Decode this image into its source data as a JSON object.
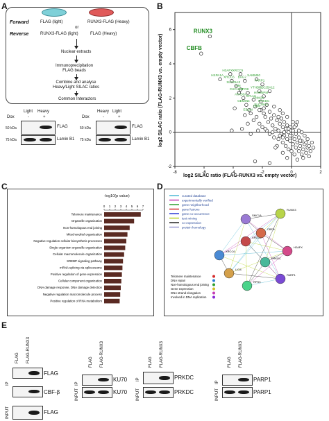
{
  "panel_letters": {
    "A": "A",
    "B": "B",
    "C": "C",
    "D": "D",
    "E": "E"
  },
  "panelA": {
    "forward_label": "Forward",
    "reverse_label": "Reverse",
    "forward_left": "FLAG (light)",
    "forward_right": "RUNX3-FLAG (Heavy)",
    "or_text": "or",
    "reverse_left": "RUNX3-FLAG (light)",
    "reverse_right": "FLAG (Heavy)",
    "steps": [
      "Nuclear extracts",
      "Immunoprecipitation\nFLAG beads",
      "Combine and analyse\nHeavy/Light SILAC ratios",
      "Common Interactors"
    ],
    "blot1_cols": [
      "Light",
      "Heavy"
    ],
    "blot2_cols": [
      "Heavy",
      "Light"
    ],
    "dox_label": "Dox",
    "dox_signs": [
      "-",
      "+"
    ],
    "mw_50": "50 kDa",
    "mw_75": "75 kDa",
    "flag_label": "FLAG",
    "lamin_label": "Lamin B1"
  },
  "chart_data": {
    "type": "scatter",
    "xlabel": "log2 SILAC ratio (FLAG-RUNX3 vs. empty vector)",
    "ylabel": "log2 SILAC ratio (FLAG-RUNX3 vs. empty vector)",
    "xlim": [
      -8,
      2
    ],
    "ylim": [
      -2,
      7
    ],
    "xticks": [
      -8,
      -6,
      -4,
      -2,
      0,
      2
    ],
    "yticks": [
      -2,
      0,
      2,
      4,
      6
    ],
    "highlighted": [
      {
        "name": "RUNX3",
        "x": -5.6,
        "y": 5.6
      },
      {
        "name": "CBFB",
        "x": -6.2,
        "y": 4.6
      },
      {
        "name": "H2AFX",
        "x": -4.2,
        "y": 3.4
      },
      {
        "name": "HSPA1A",
        "x": -4.9,
        "y": 3.1
      },
      {
        "name": "XRCC5",
        "x": -3.5,
        "y": 3.4
      },
      {
        "name": "XRCC6",
        "x": -4.1,
        "y": 3.0
      },
      {
        "name": "SAMM50",
        "x": -2.4,
        "y": 3.1
      },
      {
        "name": "BAG2",
        "x": -3.2,
        "y": 3.0
      },
      {
        "name": "SLC25A3",
        "x": -3.8,
        "y": 2.7
      },
      {
        "name": "PARP1",
        "x": -2.0,
        "y": 2.8
      },
      {
        "name": "VIM",
        "x": -3.5,
        "y": 2.5
      },
      {
        "name": "SLC25A12",
        "x": -1.5,
        "y": 2.4
      },
      {
        "name": "CHCHD3",
        "x": -3.6,
        "y": 2.3
      },
      {
        "name": "IPO8",
        "x": -3.0,
        "y": 2.3
      },
      {
        "name": "YTHDF2",
        "x": -2.2,
        "y": 2.4
      },
      {
        "name": "ATAD3A",
        "x": -3.3,
        "y": 2.0
      },
      {
        "name": "RPL13",
        "x": -2.6,
        "y": 1.9
      },
      {
        "name": "HNRNPM",
        "x": -1.9,
        "y": 2.1
      },
      {
        "name": "TRIM28",
        "x": -2.1,
        "y": 1.8
      },
      {
        "name": "GEMIN4",
        "x": -3.1,
        "y": 1.6
      },
      {
        "name": "PRKDC",
        "x": -1.7,
        "y": 1.6
      },
      {
        "name": "SLC25A5",
        "x": -1.9,
        "y": 1.4
      },
      {
        "name": "DNM",
        "x": -2.2,
        "y": 1.3
      },
      {
        "name": "EBLIN",
        "x": -2.8,
        "y": 1.1
      }
    ],
    "others": [
      [
        -2.1,
        1.3
      ],
      [
        -1.9,
        1.1
      ],
      [
        -1.8,
        0.9
      ],
      [
        -1.5,
        1.2
      ],
      [
        -1.4,
        0.8
      ],
      [
        -1.2,
        1.0
      ],
      [
        -1.0,
        0.7
      ],
      [
        -0.9,
        0.9
      ],
      [
        -0.8,
        0.5
      ],
      [
        -0.7,
        0.8
      ],
      [
        -0.6,
        0.3
      ],
      [
        -0.5,
        0.6
      ],
      [
        -0.4,
        0.2
      ],
      [
        -0.3,
        0.4
      ],
      [
        -0.2,
        0.0
      ],
      [
        -0.1,
        0.3
      ],
      [
        0.0,
        -0.2
      ],
      [
        0.1,
        0.1
      ],
      [
        0.2,
        -0.4
      ],
      [
        0.3,
        -0.1
      ],
      [
        0.4,
        -0.6
      ],
      [
        0.5,
        -0.3
      ],
      [
        0.6,
        -0.8
      ],
      [
        0.7,
        -0.5
      ],
      [
        0.8,
        -1.0
      ],
      [
        0.9,
        -0.7
      ],
      [
        1.0,
        -1.2
      ],
      [
        1.1,
        -0.9
      ],
      [
        1.2,
        -1.4
      ],
      [
        1.3,
        -1.1
      ],
      [
        -1.6,
        0.6
      ],
      [
        -1.3,
        0.4
      ],
      [
        -1.1,
        0.2
      ],
      [
        -0.9,
        0.1
      ],
      [
        -0.7,
        -0.1
      ],
      [
        -0.5,
        -0.2
      ],
      [
        -0.3,
        -0.4
      ],
      [
        -0.1,
        -0.5
      ],
      [
        0.1,
        -0.7
      ],
      [
        0.3,
        -0.9
      ],
      [
        0.5,
        -1.1
      ],
      [
        0.7,
        -1.3
      ],
      [
        -2.4,
        0.9
      ],
      [
        -2.6,
        0.7
      ],
      [
        -2.2,
        0.5
      ],
      [
        -2.0,
        0.3
      ],
      [
        -1.7,
        0.1
      ],
      [
        -1.5,
        -0.1
      ],
      [
        -1.2,
        -0.3
      ],
      [
        -0.9,
        -0.4
      ],
      [
        -0.6,
        -0.6
      ],
      [
        -0.4,
        -0.8
      ],
      [
        -0.2,
        -1.0
      ],
      [
        0.0,
        -1.1
      ],
      [
        0.2,
        -1.3
      ],
      [
        -3.0,
        0.5
      ],
      [
        -3.4,
        0.2
      ],
      [
        -4.1,
        0.1
      ],
      [
        -2.8,
        -0.1
      ],
      [
        -1.0,
        -0.8
      ],
      [
        -0.6,
        -1.2
      ],
      [
        -0.3,
        -1.5
      ],
      [
        0.4,
        -1.6
      ],
      [
        0.8,
        -1.5
      ],
      [
        -3.9,
        1.4
      ],
      [
        -3.2,
        1.0
      ],
      [
        -2.9,
        1.3
      ],
      [
        -2.5,
        1.5
      ],
      [
        -1.2,
        1.5
      ],
      [
        -0.8,
        1.3
      ],
      [
        -0.6,
        1.1
      ],
      [
        -0.3,
        0.9
      ],
      [
        0.1,
        0.6
      ],
      [
        0.3,
        0.4
      ],
      [
        0.5,
        0.1
      ],
      [
        0.7,
        0.0
      ],
      [
        0.9,
        -0.2
      ],
      [
        1.1,
        -0.4
      ],
      [
        1.4,
        -0.6
      ],
      [
        1.5,
        -0.9
      ],
      [
        -1.1,
        -0.9
      ],
      [
        -1.5,
        -1.8
      ],
      [
        -2.5,
        -1.7
      ],
      [
        -0.5,
        0.0
      ],
      [
        -0.2,
        0.2
      ],
      [
        0.2,
        0.3
      ],
      [
        0.4,
        0.6
      ],
      [
        -0.6,
        -0.3
      ],
      [
        -0.8,
        -0.2
      ],
      [
        -1.3,
        0.0
      ],
      [
        -1.8,
        0.2
      ],
      [
        -2.3,
        0.1
      ],
      [
        -0.1,
        -0.2
      ],
      [
        0.6,
        -0.5
      ],
      [
        1.0,
        -0.6
      ],
      [
        1.2,
        -0.8
      ]
    ],
    "runx3_color": "#1e8a1e",
    "gene_color": "#2d9e2d",
    "point_color": "#222222"
  },
  "panelC": {
    "title": "-log10(p value)",
    "ticks": [
      "0",
      "1",
      "2",
      "3",
      "4",
      "5",
      "6",
      "7"
    ],
    "categories": [
      "Telomere maintenance",
      "Organelle organization",
      "Non-homologous end joining",
      "Mitochondrial organization",
      "Negative regulation cellular biosynthetic processes",
      "Single organism organelle organization",
      "Cellular macromolecule organization",
      "SREBP signaling pathway",
      "mRNA splicing via spliceosome",
      "Positive regulation of gene expression",
      "Cellular component organization",
      "DNA damage response, DNA damage detection",
      "Negative regulation macromolecule process",
      "Positive regulation of RNA metabolism"
    ],
    "values": [
      6.6,
      5.4,
      4.6,
      4.2,
      4.0,
      3.8,
      3.6,
      3.4,
      3.3,
      3.2,
      3.1,
      3.0,
      2.9,
      2.8
    ],
    "bar_color": "#5a2a22"
  },
  "panelD": {
    "legend": [
      {
        "label": "curated database",
        "color": "#4db8d4"
      },
      {
        "label": "experimentally verified",
        "color": "#c43bb3"
      },
      {
        "label": "gene neighborhood",
        "color": "#2d9e2d"
      },
      {
        "label": "gene fusions",
        "color": "#d42a2a"
      },
      {
        "label": "gene co-occurrence",
        "color": "#2a3bd4"
      },
      {
        "label": "text mining",
        "color": "#b8d42a"
      },
      {
        "label": "co-expression",
        "color": "#222222"
      },
      {
        "label": "protein homology",
        "color": "#9a9ad4"
      }
    ],
    "nodes": [
      "SMC1A",
      "RUNX3",
      "XRCC5",
      "XRCC6",
      "H2AFX",
      "PRKDC",
      "LIG4",
      "PARP1",
      "RPS3",
      "CBFB"
    ],
    "lower_legend": [
      {
        "label": "Telomere maintenance",
        "color": "#d42a2a"
      },
      {
        "label": "DNA repair",
        "color": "#2a7bd4"
      },
      {
        "label": "Non-homologous end joining",
        "color": "#2d9e2d"
      },
      {
        "label": "Gene expression",
        "color": "#d4c02a"
      },
      {
        "label": "DNA strand elongation",
        "color": "#c43bb3"
      },
      {
        "label": "Involved in DNA replication",
        "color": "#8a2ad4"
      }
    ]
  },
  "panelE": {
    "col_flag": "FLAG",
    "col_runx3": "FLAG-RUNX3",
    "ip_label": "IP",
    "input_label": "INPUT",
    "blot1_labels": [
      "FLAG",
      "CBF-β",
      "FLAG"
    ],
    "blot2_label_ip": "KU70",
    "blot2_label_input": "KU70",
    "blot3_label_ip": "PRKDC",
    "blot3_label_input": "PRKDC",
    "blot4_label_ip": "PARP1",
    "blot4_label_input": "PARP1"
  }
}
